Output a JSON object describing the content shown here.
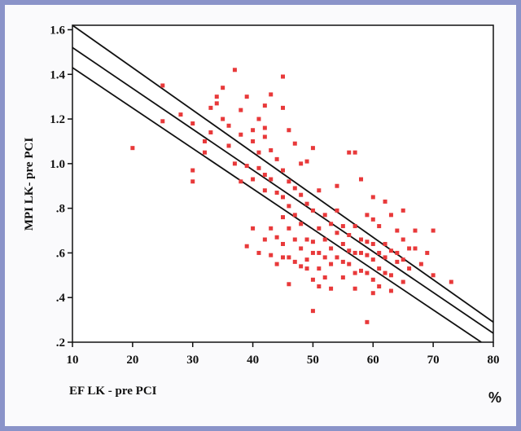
{
  "chart_data": {
    "type": "scatter",
    "title": "",
    "xlabel": "EF LK - pre PCI",
    "ylabel": "MPI LK- pre PCI",
    "unit_label": "%",
    "xlim": [
      10,
      80
    ],
    "ylim": [
      0.2,
      1.62
    ],
    "x_ticks": [
      10,
      20,
      30,
      40,
      50,
      60,
      70,
      80
    ],
    "y_ticks": [
      0.2,
      0.4,
      0.6,
      0.8,
      1.0,
      1.2,
      1.4,
      1.6
    ],
    "x_tick_labels": [
      "10",
      "20",
      "30",
      "40",
      "50",
      "60",
      "70",
      "80"
    ],
    "y_tick_labels": [
      ".2",
      ".4",
      ".6",
      ".8",
      "1.0",
      "1.2",
      "1.4",
      "1.6"
    ],
    "grid": false,
    "colors": {
      "points": "#e8393a",
      "lines": "#111111",
      "frame": "#8a93c9"
    },
    "regression_lines": [
      {
        "name": "",
        "x": [
          10,
          80
        ],
        "y": [
          1.62,
          0.29
        ]
      },
      {
        "name": "",
        "x": [
          10,
          80
        ],
        "y": [
          1.52,
          0.24
        ]
      },
      {
        "name": "",
        "x": [
          10,
          78
        ],
        "y": [
          1.43,
          0.2
        ]
      }
    ],
    "points": [
      [
        20,
        1.07
      ],
      [
        25,
        1.35
      ],
      [
        25,
        1.19
      ],
      [
        28,
        1.22
      ],
      [
        30,
        1.18
      ],
      [
        30,
        0.97
      ],
      [
        30,
        0.92
      ],
      [
        32,
        1.05
      ],
      [
        32,
        1.1
      ],
      [
        33,
        1.25
      ],
      [
        33,
        1.14
      ],
      [
        34,
        1.3
      ],
      [
        34,
        1.27
      ],
      [
        35,
        1.34
      ],
      [
        35,
        1.2
      ],
      [
        36,
        1.17
      ],
      [
        36,
        1.08
      ],
      [
        37,
        1.42
      ],
      [
        37,
        1.0
      ],
      [
        38,
        1.13
      ],
      [
        38,
        0.92
      ],
      [
        38,
        1.24
      ],
      [
        39,
        0.99
      ],
      [
        39,
        1.3
      ],
      [
        39,
        0.63
      ],
      [
        40,
        1.15
      ],
      [
        40,
        1.1
      ],
      [
        40,
        0.93
      ],
      [
        40,
        0.71
      ],
      [
        41,
        1.2
      ],
      [
        41,
        1.05
      ],
      [
        41,
        0.98
      ],
      [
        41,
        0.6
      ],
      [
        42,
        1.26
      ],
      [
        42,
        1.16
      ],
      [
        42,
        1.12
      ],
      [
        42,
        0.95
      ],
      [
        42,
        0.88
      ],
      [
        42,
        0.66
      ],
      [
        43,
        1.31
      ],
      [
        43,
        1.06
      ],
      [
        43,
        0.93
      ],
      [
        43,
        0.71
      ],
      [
        43,
        0.59
      ],
      [
        44,
        1.02
      ],
      [
        44,
        0.87
      ],
      [
        44,
        0.67
      ],
      [
        44,
        0.55
      ],
      [
        45,
        1.39
      ],
      [
        45,
        1.25
      ],
      [
        45,
        0.97
      ],
      [
        45,
        0.85
      ],
      [
        45,
        0.76
      ],
      [
        45,
        0.64
      ],
      [
        45,
        0.58
      ],
      [
        46,
        1.15
      ],
      [
        46,
        0.92
      ],
      [
        46,
        0.81
      ],
      [
        46,
        0.71
      ],
      [
        46,
        0.58
      ],
      [
        46,
        0.46
      ],
      [
        47,
        1.09
      ],
      [
        47,
        0.89
      ],
      [
        47,
        0.77
      ],
      [
        47,
        0.66
      ],
      [
        47,
        0.56
      ],
      [
        48,
        1.0
      ],
      [
        48,
        0.86
      ],
      [
        48,
        0.73
      ],
      [
        48,
        0.62
      ],
      [
        48,
        0.54
      ],
      [
        49,
        1.01
      ],
      [
        49,
        0.82
      ],
      [
        49,
        0.66
      ],
      [
        49,
        0.57
      ],
      [
        49,
        0.53
      ],
      [
        50,
        1.07
      ],
      [
        50,
        0.79
      ],
      [
        50,
        0.65
      ],
      [
        50,
        0.6
      ],
      [
        50,
        0.48
      ],
      [
        50,
        0.34
      ],
      [
        51,
        0.88
      ],
      [
        51,
        0.71
      ],
      [
        51,
        0.6
      ],
      [
        51,
        0.53
      ],
      [
        51,
        0.45
      ],
      [
        52,
        0.77
      ],
      [
        52,
        0.66
      ],
      [
        52,
        0.58
      ],
      [
        52,
        0.49
      ],
      [
        53,
        0.73
      ],
      [
        53,
        0.62
      ],
      [
        53,
        0.55
      ],
      [
        53,
        0.44
      ],
      [
        54,
        0.9
      ],
      [
        54,
        0.79
      ],
      [
        54,
        0.69
      ],
      [
        54,
        0.58
      ],
      [
        55,
        0.72
      ],
      [
        55,
        0.64
      ],
      [
        55,
        0.56
      ],
      [
        55,
        0.49
      ],
      [
        56,
        1.05
      ],
      [
        56,
        0.68
      ],
      [
        56,
        0.61
      ],
      [
        56,
        0.55
      ],
      [
        57,
        1.05
      ],
      [
        57,
        0.72
      ],
      [
        57,
        0.6
      ],
      [
        57,
        0.51
      ],
      [
        57,
        0.44
      ],
      [
        58,
        0.93
      ],
      [
        58,
        0.66
      ],
      [
        58,
        0.6
      ],
      [
        58,
        0.52
      ],
      [
        59,
        0.77
      ],
      [
        59,
        0.65
      ],
      [
        59,
        0.59
      ],
      [
        59,
        0.51
      ],
      [
        59,
        0.29
      ],
      [
        60,
        0.85
      ],
      [
        60,
        0.75
      ],
      [
        60,
        0.64
      ],
      [
        60,
        0.57
      ],
      [
        60,
        0.48
      ],
      [
        60,
        0.42
      ],
      [
        61,
        0.72
      ],
      [
        61,
        0.6
      ],
      [
        61,
        0.53
      ],
      [
        61,
        0.45
      ],
      [
        62,
        0.83
      ],
      [
        62,
        0.64
      ],
      [
        62,
        0.58
      ],
      [
        62,
        0.51
      ],
      [
        63,
        0.77
      ],
      [
        63,
        0.61
      ],
      [
        63,
        0.5
      ],
      [
        63,
        0.43
      ],
      [
        64,
        0.7
      ],
      [
        64,
        0.6
      ],
      [
        64,
        0.56
      ],
      [
        65,
        0.79
      ],
      [
        65,
        0.66
      ],
      [
        65,
        0.57
      ],
      [
        65,
        0.47
      ],
      [
        66,
        0.62
      ],
      [
        66,
        0.53
      ],
      [
        67,
        0.7
      ],
      [
        67,
        0.62
      ],
      [
        68,
        0.55
      ],
      [
        69,
        0.6
      ],
      [
        70,
        0.7
      ],
      [
        70,
        0.5
      ],
      [
        73,
        0.47
      ]
    ]
  }
}
